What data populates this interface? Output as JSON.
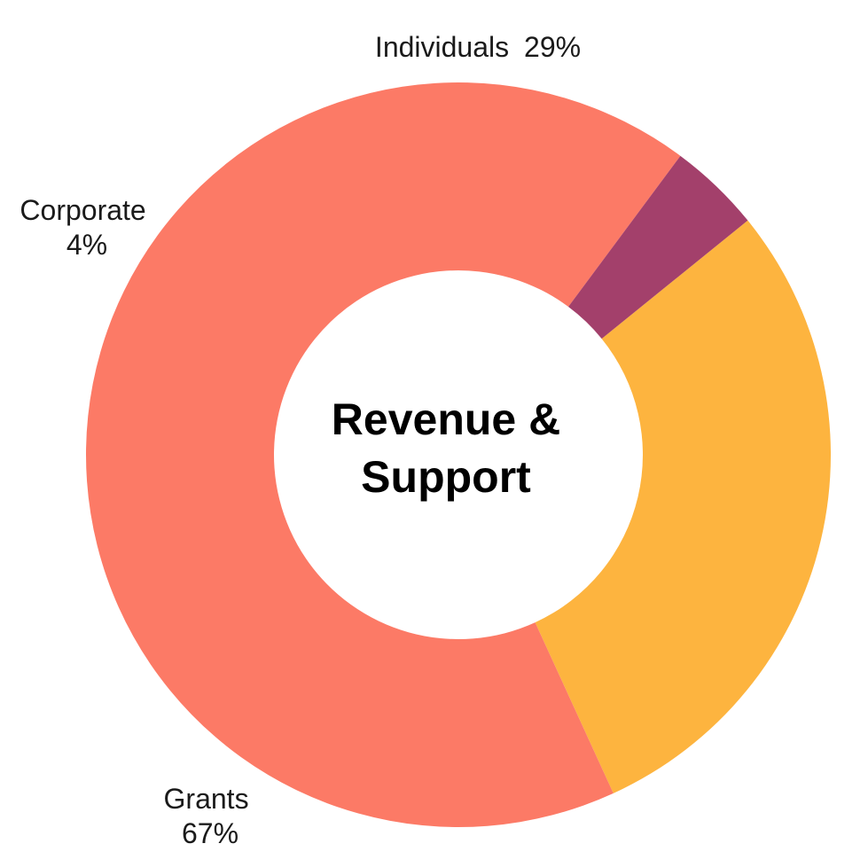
{
  "chart_data": {
    "type": "pie",
    "title_lines": [
      "Revenue &",
      "Support"
    ],
    "categories": [
      "Individuals",
      "Grants",
      "Corporate"
    ],
    "values": [
      29,
      67,
      4
    ],
    "value_labels": [
      "29%",
      "67%",
      "4%"
    ],
    "colors": [
      "#FDB43F",
      "#FC7A66",
      "#A3406B"
    ],
    "donut": true,
    "legend": "none"
  }
}
